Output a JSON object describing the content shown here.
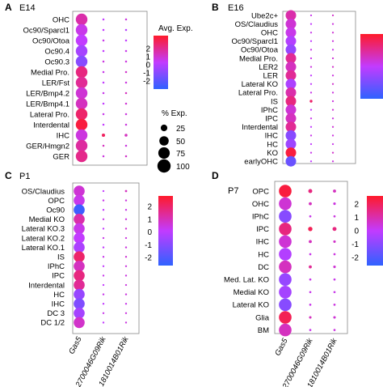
{
  "colors": {
    "high": "#ff1a2a",
    "mid": "#c23bff",
    "low": "#2f62ff"
  },
  "size_legend": {
    "title": "% Exp.",
    "levels": [
      "25",
      "50",
      "75",
      "100"
    ]
  },
  "panels": [
    {
      "letter": "A",
      "stage": "E14",
      "columns": [
        "Gas5",
        "2700046G09Rik",
        "1810014B01Rik"
      ],
      "rows": [
        "OHC",
        "Oc90/Sparcl1",
        "Oc90/Otoa",
        "Oc90.4",
        "Oc90.3",
        "Medial Pro.",
        "LER/Fst",
        "LER/Bmp4.2",
        "LER/Bmp4.1",
        "Lateral Pro.",
        "Interdental",
        "IHC",
        "GER/Hmgn2",
        "GER"
      ],
      "legend": {
        "title": "Avg. Exp.",
        "ticks": [
          "2",
          "1",
          "0",
          "-1",
          "-2"
        ]
      }
    },
    {
      "letter": "B",
      "stage": "E16",
      "columns": [
        "Gas5",
        "2700046G09Rik",
        "1810014B01Rik"
      ],
      "rows": [
        "Ube2c+",
        "OS/Claudius",
        "OHC",
        "Oc90/Sparcl1",
        "Oc90/Otoa",
        "Medial Pro.",
        "LER2",
        "LER",
        "Lateral KO",
        "Lateral Pro.",
        "IS",
        "IPhC",
        "IPC",
        "Interdental",
        "IHC",
        "HC",
        "KO",
        "earlyOHC"
      ],
      "legend": {
        "title": "",
        "ticks": []
      }
    },
    {
      "letter": "C",
      "stage": "P1",
      "columns": [
        "Gas5",
        "2700046G09Rik",
        "1810014B01Rik"
      ],
      "rows": [
        "OS/Claudius",
        "OPC",
        "Oc90",
        "Medial KO",
        "Lateral KO.3",
        "Lateral KO.2",
        "Lateral KO.1",
        "IS",
        "IPhC",
        "IPC",
        "Interdental",
        "HC",
        "IHC",
        "DC 3",
        "DC 1/2"
      ],
      "legend": {
        "title": "",
        "ticks": [
          "2",
          "1",
          "0",
          "-1",
          "-2"
        ]
      }
    },
    {
      "letter": "D",
      "stage": "P7",
      "columns": [
        "Gas5",
        "2700046G09Rik",
        "1810014B01Rik"
      ],
      "rows": [
        "OPC",
        "OHC",
        "IPhC",
        "IPC",
        "IHC",
        "HC",
        "DC",
        "Med. Lat. KO",
        "Medial KO",
        "Lateral KO",
        "Glia",
        "BM"
      ],
      "legend": {
        "title": "",
        "ticks": [
          "2",
          "1",
          "0",
          "-1",
          "-2"
        ]
      }
    }
  ],
  "chart_data": [
    {
      "type": "scatter",
      "title": "E14",
      "categories": [
        "Gas5",
        "2700046G09Rik",
        "1810014B01Rik"
      ],
      "rows": [
        "OHC",
        "Oc90/Sparcl1",
        "Oc90/Otoa",
        "Oc90.4",
        "Oc90.3",
        "Medial Pro.",
        "LER/Fst",
        "LER/Bmp4.2",
        "LER/Bmp4.1",
        "Lateral Pro.",
        "Interdental",
        "IHC",
        "GER/Hmgn2",
        "GER"
      ],
      "avg_exp": [
        [
          0.8,
          0.0,
          0.3
        ],
        [
          0.2,
          0.0,
          -0.2
        ],
        [
          0.0,
          0.2,
          0.0
        ],
        [
          -0.4,
          0.0,
          0.2
        ],
        [
          -0.8,
          0.3,
          0.3
        ],
        [
          1.2,
          0.2,
          0.5
        ],
        [
          1.0,
          0.0,
          0.3
        ],
        [
          0.4,
          0.2,
          0.6
        ],
        [
          0.6,
          0.0,
          0.4
        ],
        [
          1.4,
          0.2,
          0.3
        ],
        [
          1.8,
          0.0,
          0.3
        ],
        [
          0.3,
          1.5,
          0.6
        ],
        [
          0.9,
          0.6,
          0.3
        ],
        [
          1.1,
          0.3,
          0.5
        ]
      ],
      "pct_exp": [
        [
          100,
          3,
          3
        ],
        [
          100,
          3,
          3
        ],
        [
          100,
          3,
          3
        ],
        [
          100,
          3,
          3
        ],
        [
          100,
          3,
          3
        ],
        [
          100,
          3,
          3
        ],
        [
          100,
          3,
          3
        ],
        [
          100,
          3,
          3
        ],
        [
          100,
          3,
          3
        ],
        [
          100,
          3,
          3
        ],
        [
          100,
          3,
          3
        ],
        [
          100,
          8,
          6
        ],
        [
          100,
          3,
          3
        ],
        [
          100,
          3,
          3
        ]
      ],
      "color_range": [
        -2,
        2
      ],
      "legend": "right"
    },
    {
      "type": "scatter",
      "title": "E16",
      "categories": [
        "Gas5",
        "2700046G09Rik",
        "1810014B01Rik"
      ],
      "rows": [
        "Ube2c+",
        "OS/Claudius",
        "OHC",
        "Oc90/Sparcl1",
        "Oc90/Otoa",
        "Medial Pro.",
        "LER2",
        "LER",
        "Lateral KO",
        "Lateral Pro.",
        "IS",
        "IPhC",
        "IPC",
        "Interdental",
        "IHC",
        "HC",
        "KO",
        "earlyOHC"
      ],
      "avg_exp": [
        [
          0.8,
          0.2,
          0.5
        ],
        [
          0.4,
          0.0,
          0.3
        ],
        [
          0.2,
          0.2,
          0.4
        ],
        [
          -0.2,
          0.0,
          0.3
        ],
        [
          -0.6,
          0.2,
          0.2
        ],
        [
          1.0,
          0.2,
          0.4
        ],
        [
          0.6,
          0.3,
          0.5
        ],
        [
          1.0,
          0.0,
          0.3
        ],
        [
          -0.3,
          0.0,
          0.5
        ],
        [
          0.8,
          0.2,
          0.3
        ],
        [
          1.2,
          1.4,
          0.3
        ],
        [
          0.4,
          0.0,
          0.4
        ],
        [
          0.6,
          0.2,
          0.3
        ],
        [
          1.0,
          0.0,
          0.4
        ],
        [
          -0.8,
          0.2,
          0.3
        ],
        [
          -0.5,
          0.0,
          0.2
        ],
        [
          1.8,
          0.2,
          0.5
        ],
        [
          -1.2,
          0.0,
          0.3
        ]
      ],
      "pct_exp": [
        [
          100,
          3,
          3
        ],
        [
          100,
          3,
          3
        ],
        [
          100,
          3,
          3
        ],
        [
          100,
          3,
          3
        ],
        [
          100,
          3,
          3
        ],
        [
          100,
          3,
          3
        ],
        [
          100,
          3,
          3
        ],
        [
          100,
          3,
          3
        ],
        [
          100,
          3,
          3
        ],
        [
          100,
          3,
          3
        ],
        [
          100,
          7,
          3
        ],
        [
          100,
          3,
          3
        ],
        [
          100,
          3,
          3
        ],
        [
          100,
          3,
          3
        ],
        [
          100,
          3,
          3
        ],
        [
          100,
          3,
          3
        ],
        [
          100,
          3,
          3
        ],
        [
          100,
          3,
          3
        ]
      ],
      "color_range": [
        -2,
        2
      ],
      "legend": "right"
    },
    {
      "type": "scatter",
      "title": "P1",
      "categories": [
        "Gas5",
        "2700046G09Rik",
        "1810014B01Rik"
      ],
      "rows": [
        "OS/Claudius",
        "OPC",
        "Oc90",
        "Medial KO",
        "Lateral KO.3",
        "Lateral KO.2",
        "Lateral KO.1",
        "IS",
        "IPhC",
        "IPC",
        "Interdental",
        "HC",
        "IHC",
        "DC 3",
        "DC 1/2"
      ],
      "avg_exp": [
        [
          0.4,
          0.0,
          0.6
        ],
        [
          0.2,
          0.2,
          0.3
        ],
        [
          -1.8,
          0.0,
          0.2
        ],
        [
          0.8,
          0.2,
          0.3
        ],
        [
          0.2,
          0.0,
          0.4
        ],
        [
          0.0,
          0.2,
          0.3
        ],
        [
          -0.3,
          0.0,
          0.3
        ],
        [
          1.4,
          0.2,
          0.4
        ],
        [
          0.6,
          0.0,
          0.3
        ],
        [
          1.2,
          0.2,
          0.3
        ],
        [
          1.0,
          0.0,
          0.3
        ],
        [
          -0.6,
          0.2,
          0.3
        ],
        [
          -0.9,
          0.0,
          0.2
        ],
        [
          -0.4,
          0.2,
          0.3
        ],
        [
          0.5,
          0.0,
          0.3
        ]
      ],
      "pct_exp": [
        [
          100,
          3,
          4
        ],
        [
          100,
          3,
          3
        ],
        [
          100,
          3,
          3
        ],
        [
          100,
          3,
          3
        ],
        [
          100,
          3,
          3
        ],
        [
          100,
          3,
          3
        ],
        [
          100,
          3,
          3
        ],
        [
          100,
          3,
          3
        ],
        [
          100,
          3,
          3
        ],
        [
          100,
          3,
          3
        ],
        [
          100,
          3,
          3
        ],
        [
          100,
          3,
          3
        ],
        [
          100,
          3,
          3
        ],
        [
          100,
          3,
          3
        ],
        [
          100,
          3,
          3
        ]
      ],
      "color_range": [
        -2,
        2
      ],
      "legend": "right"
    },
    {
      "type": "scatter",
      "title": "P7",
      "categories": [
        "Gas5",
        "2700046G09Rik",
        "1810014B01Rik"
      ],
      "rows": [
        "OPC",
        "OHC",
        "IPhC",
        "IPC",
        "IHC",
        "HC",
        "DC",
        "Med. Lat. KO",
        "Medial KO",
        "Lateral KO",
        "Glia",
        "BM"
      ],
      "avg_exp": [
        [
          1.8,
          1.2,
          0.6
        ],
        [
          0.4,
          0.6,
          0.3
        ],
        [
          -0.8,
          0.2,
          0.3
        ],
        [
          1.2,
          1.6,
          1.2
        ],
        [
          0.4,
          0.6,
          0.5
        ],
        [
          -0.2,
          0.2,
          0.3
        ],
        [
          0.6,
          1.0,
          0.4
        ],
        [
          -0.6,
          0.2,
          0.2
        ],
        [
          -0.4,
          0.2,
          0.2
        ],
        [
          -0.8,
          0.2,
          0.3
        ],
        [
          1.6,
          0.6,
          0.4
        ],
        [
          0.6,
          0.2,
          0.3
        ]
      ],
      "pct_exp": [
        [
          100,
          10,
          6
        ],
        [
          100,
          6,
          4
        ],
        [
          100,
          3,
          3
        ],
        [
          100,
          12,
          10
        ],
        [
          100,
          6,
          4
        ],
        [
          100,
          3,
          3
        ],
        [
          100,
          6,
          4
        ],
        [
          100,
          3,
          3
        ],
        [
          100,
          3,
          3
        ],
        [
          100,
          3,
          3
        ],
        [
          100,
          4,
          4
        ],
        [
          100,
          3,
          3
        ]
      ],
      "color_range": [
        -2,
        2
      ],
      "legend": "right"
    }
  ]
}
